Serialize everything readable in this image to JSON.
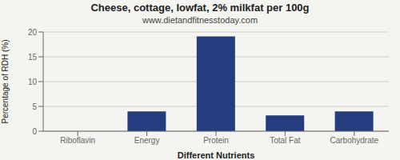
{
  "chart_data": {
    "type": "bar",
    "title": "Cheese, cottage, lowfat, 2% milkfat per 100g",
    "subtitle": "www.dietandfitnesstoday.com",
    "xlabel": "Different Nutrients",
    "ylabel": "Percentage of RDH (%)",
    "categories": [
      "Riboflavin",
      "Energy",
      "Protein",
      "Total Fat",
      "Carbohydrate"
    ],
    "values": [
      0,
      4.0,
      19.1,
      3.2,
      4.0
    ],
    "color": "#253d7f",
    "ylim": [
      0,
      20
    ],
    "yticks": [
      0,
      5,
      10,
      15,
      20
    ],
    "grid": true
  }
}
